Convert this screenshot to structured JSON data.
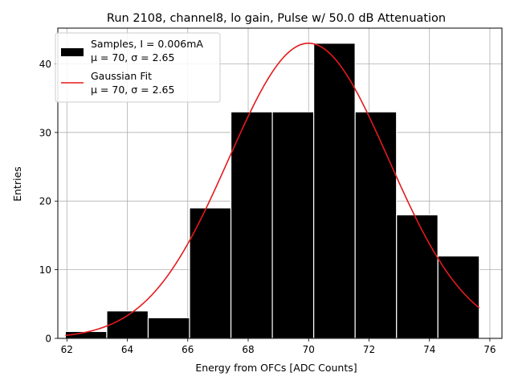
{
  "chart_data": {
    "type": "bar",
    "title": "Run 2108, channel8, lo gain, Pulse w/ 50.0 dB Attenuation",
    "xlabel": "Energy from OFCs [ADC Counts]",
    "ylabel": "Entries",
    "xlim": [
      61.7,
      76.4
    ],
    "ylim": [
      0,
      45.2
    ],
    "xticks": [
      "62",
      "64",
      "66",
      "68",
      "70",
      "72",
      "74",
      "76"
    ],
    "yticks": [
      "0",
      "10",
      "20",
      "30",
      "40"
    ],
    "grid": true,
    "legend_position": "top-left",
    "histogram": {
      "name": "Samples, I = 0.006mA",
      "label_line2": "μ = 70, σ = 2.65",
      "color": "#000000",
      "bins": [
        {
          "x0": 61.95,
          "x1": 63.32,
          "count": 1
        },
        {
          "x0": 63.32,
          "x1": 64.69,
          "count": 4
        },
        {
          "x0": 64.69,
          "x1": 66.06,
          "count": 3
        },
        {
          "x0": 66.06,
          "x1": 67.43,
          "count": 19
        },
        {
          "x0": 67.43,
          "x1": 68.8,
          "count": 33
        },
        {
          "x0": 68.8,
          "x1": 70.17,
          "count": 33
        },
        {
          "x0": 70.17,
          "x1": 71.54,
          "count": 43
        },
        {
          "x0": 71.54,
          "x1": 72.91,
          "count": 33
        },
        {
          "x0": 72.91,
          "x1": 74.28,
          "count": 18
        },
        {
          "x0": 74.28,
          "x1": 75.65,
          "count": 12
        }
      ]
    },
    "fit": {
      "name": "Gaussian Fit",
      "label_line2": "μ = 70, σ = 2.65",
      "color": "#e41a1c",
      "amplitude": 43,
      "mu": 70,
      "sigma": 2.65,
      "x_range": [
        61.95,
        75.65
      ]
    }
  }
}
